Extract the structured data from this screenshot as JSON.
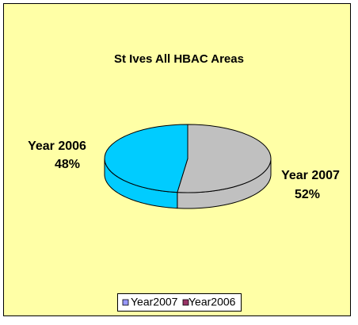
{
  "chart_data": {
    "type": "pie3d",
    "title": "St Ives All HBAC Areas",
    "categories": [
      "Year 2007",
      "Year 2006"
    ],
    "values": [
      52,
      48
    ],
    "value_labels": [
      "52%",
      "48%"
    ],
    "colors": [
      "#c0c0c0",
      "#00ccff"
    ],
    "legend": [
      {
        "name": "Year2007",
        "color": "#9999ff"
      },
      {
        "name": "Year2006",
        "color": "#993366"
      }
    ]
  }
}
